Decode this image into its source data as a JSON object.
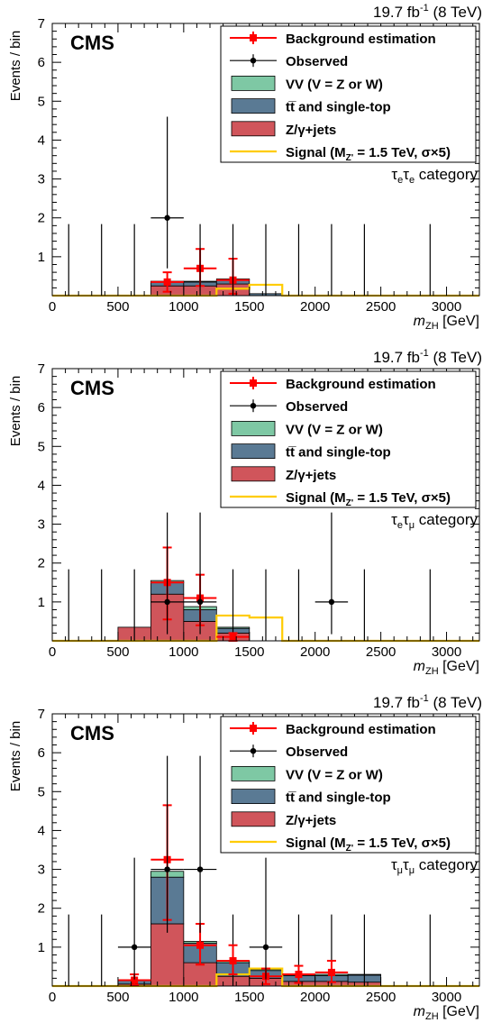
{
  "figure": {
    "lumi": "19.7 fb",
    "lumi_exp": "-1",
    "energy": "(8 TeV)",
    "cms_label": "CMS",
    "ylabel": "Events / bin",
    "xlabel_main": "m",
    "xlabel_sub": "ZH",
    "xlabel_unit": "[GeV]",
    "colors": {
      "vv": "#7ec8a4",
      "ttbar": "#5a7a94",
      "zjets": "#d0555b",
      "signal": "#ffcc00",
      "background_est": "#ff0000",
      "observed": "#000000"
    },
    "legend": [
      {
        "key": "bkg",
        "label": "Background estimation"
      },
      {
        "key": "obs",
        "label": "Observed"
      },
      {
        "key": "vv",
        "label": "VV (V = Z or W)"
      },
      {
        "key": "tt",
        "label": "tt̅ and single-top"
      },
      {
        "key": "zj",
        "label": "Z/γ+jets"
      },
      {
        "key": "sig",
        "label_prefix": "Signal (M",
        "label_sub": "Z'",
        "label_suffix": " = 1.5 TeV, σ×5)"
      }
    ]
  },
  "chart_data": [
    {
      "type": "bar",
      "category": {
        "t1": "τ",
        "s1": "e",
        "t2": "τ",
        "s2": "e",
        "word": " category"
      },
      "xlim": [
        0,
        3250
      ],
      "ylim": [
        0,
        7
      ],
      "xticks": [
        0,
        500,
        1000,
        1500,
        2000,
        2500,
        3000
      ],
      "yticks": [
        1,
        2,
        3,
        4,
        5,
        6,
        7
      ],
      "bins": [
        0,
        250,
        500,
        750,
        1000,
        1250,
        1500,
        1750,
        2000,
        2250,
        2500,
        3250
      ],
      "zjets": [
        0,
        0,
        0,
        0.25,
        0.25,
        0.3,
        0,
        0,
        0,
        0,
        0
      ],
      "ttbar": [
        0,
        0,
        0,
        0.1,
        0.1,
        0.1,
        0.05,
        0,
        0,
        0,
        0
      ],
      "vv": [
        0,
        0,
        0,
        0.02,
        0.02,
        0.03,
        0,
        0,
        0,
        0,
        0
      ],
      "signal": [
        0,
        0,
        0,
        0,
        0,
        0.18,
        0.28,
        0,
        0,
        0,
        0
      ],
      "background_estimation": [
        {
          "x": 875,
          "xerr": 125,
          "y": 0.35,
          "yerr_lo": 0.25,
          "yerr_hi": 0.25
        },
        {
          "x": 1125,
          "xerr": 125,
          "y": 0.7,
          "yerr_lo": 0.45,
          "yerr_hi": 0.5
        },
        {
          "x": 1375,
          "xerr": 125,
          "y": 0.4,
          "yerr_lo": 0.35,
          "yerr_hi": 0.55
        }
      ],
      "observed": [
        {
          "x": 875,
          "xerr": 125,
          "y": 2,
          "yerr_lo": 1.3,
          "yerr_hi": 2.6
        },
        {
          "x": 1125,
          "xerr": 125,
          "y": 0,
          "yerr_lo": 0,
          "yerr_hi": 1.84
        },
        {
          "x": 1375,
          "xerr": 125,
          "y": 0,
          "yerr_lo": 0,
          "yerr_hi": 1.84
        }
      ],
      "empty_bins_upper_error": [
        {
          "x": 125,
          "y": 1.84
        },
        {
          "x": 375,
          "y": 1.84
        },
        {
          "x": 625,
          "y": 1.84
        },
        {
          "x": 1625,
          "y": 1.84
        },
        {
          "x": 1875,
          "y": 1.84
        },
        {
          "x": 2125,
          "y": 1.84
        },
        {
          "x": 2375,
          "y": 1.84
        },
        {
          "x": 2875,
          "y": 1.84
        }
      ]
    },
    {
      "type": "bar",
      "category": {
        "t1": "τ",
        "s1": "e",
        "t2": "τ",
        "s2": "μ",
        "word": " category"
      },
      "xlim": [
        0,
        3250
      ],
      "ylim": [
        0,
        7
      ],
      "xticks": [
        0,
        500,
        1000,
        1500,
        2000,
        2500,
        3000
      ],
      "yticks": [
        1,
        2,
        3,
        4,
        5,
        6,
        7
      ],
      "bins": [
        0,
        250,
        500,
        750,
        1000,
        1250,
        1500,
        1750,
        2000,
        2250,
        2500,
        3250
      ],
      "zjets": [
        0,
        0,
        0.35,
        1.2,
        0.5,
        0.2,
        0,
        0,
        0,
        0,
        0
      ],
      "ttbar": [
        0,
        0,
        0,
        0.3,
        0.3,
        0.12,
        0,
        0,
        0,
        0,
        0
      ],
      "vv": [
        0,
        0,
        0,
        0.05,
        0.08,
        0.03,
        0,
        0,
        0,
        0,
        0
      ],
      "signal": [
        0,
        0,
        0,
        0,
        0,
        0.65,
        0.6,
        0,
        0,
        0,
        0
      ],
      "background_estimation": [
        {
          "x": 875,
          "xerr": 125,
          "y": 1.5,
          "yerr_lo": 0.95,
          "yerr_hi": 0.9
        },
        {
          "x": 1125,
          "xerr": 125,
          "y": 1.1,
          "yerr_lo": 0.7,
          "yerr_hi": 0.6
        },
        {
          "x": 1375,
          "xerr": 125,
          "y": 0.1,
          "yerr_lo": 0.1,
          "yerr_hi": 0.1
        }
      ],
      "observed": [
        {
          "x": 875,
          "xerr": 125,
          "y": 1,
          "yerr_lo": 0.83,
          "yerr_hi": 2.3
        },
        {
          "x": 1125,
          "xerr": 125,
          "y": 1,
          "yerr_lo": 0.83,
          "yerr_hi": 2.3
        },
        {
          "x": 2125,
          "xerr": 125,
          "y": 1,
          "yerr_lo": 0.83,
          "yerr_hi": 2.3
        }
      ],
      "empty_bins_upper_error": [
        {
          "x": 125,
          "y": 1.84
        },
        {
          "x": 375,
          "y": 1.84
        },
        {
          "x": 625,
          "y": 1.84
        },
        {
          "x": 1375,
          "y": 1.84
        },
        {
          "x": 1625,
          "y": 1.84
        },
        {
          "x": 1875,
          "y": 1.84
        },
        {
          "x": 2375,
          "y": 1.84
        },
        {
          "x": 2875,
          "y": 1.84
        }
      ]
    },
    {
      "type": "bar",
      "category": {
        "t1": "τ",
        "s1": "μ",
        "t2": "τ",
        "s2": "μ",
        "word": " category"
      },
      "xlim": [
        0,
        3250
      ],
      "ylim": [
        0,
        7
      ],
      "xticks": [
        0,
        500,
        1000,
        1500,
        2000,
        2500,
        3000
      ],
      "yticks": [
        1,
        2,
        3,
        4,
        5,
        6,
        7
      ],
      "bins": [
        0,
        250,
        500,
        750,
        1000,
        1250,
        1500,
        1750,
        2000,
        2250,
        2500,
        3250
      ],
      "zjets": [
        0,
        0,
        0.05,
        1.6,
        0.6,
        0.25,
        0.2,
        0.12,
        0.12,
        0.1,
        0
      ],
      "ttbar": [
        0,
        0,
        0.1,
        1.2,
        0.5,
        0.35,
        0.2,
        0.15,
        0.15,
        0.18,
        0
      ],
      "vv": [
        0,
        0,
        0,
        0.15,
        0.05,
        0.05,
        0.03,
        0.03,
        0.03,
        0.02,
        0
      ],
      "signal": [
        0,
        0,
        0,
        0,
        0,
        0.3,
        0.45,
        0,
        0,
        0,
        0
      ],
      "background_estimation": [
        {
          "x": 625,
          "xerr": 125,
          "y": 0.15,
          "yerr_lo": 0.12,
          "yerr_hi": 0.15
        },
        {
          "x": 875,
          "xerr": 125,
          "y": 3.25,
          "yerr_lo": 1.55,
          "yerr_hi": 1.4
        },
        {
          "x": 1125,
          "xerr": 125,
          "y": 1.05,
          "yerr_lo": 0.5,
          "yerr_hi": 0.55
        },
        {
          "x": 1375,
          "xerr": 125,
          "y": 0.65,
          "yerr_lo": 0.35,
          "yerr_hi": 0.4
        },
        {
          "x": 1625,
          "xerr": 125,
          "y": 0.25,
          "yerr_lo": 0.2,
          "yerr_hi": 0.2
        },
        {
          "x": 1875,
          "xerr": 125,
          "y": 0.3,
          "yerr_lo": 0.22,
          "yerr_hi": 0.22
        },
        {
          "x": 2125,
          "xerr": 125,
          "y": 0.35,
          "yerr_lo": 0.25,
          "yerr_hi": 0.3
        }
      ],
      "observed": [
        {
          "x": 625,
          "xerr": 125,
          "y": 1,
          "yerr_lo": 0.83,
          "yerr_hi": 2.3
        },
        {
          "x": 875,
          "xerr": 125,
          "y": 3,
          "yerr_lo": 1.63,
          "yerr_hi": 2.92
        },
        {
          "x": 1125,
          "xerr": 125,
          "y": 3,
          "yerr_lo": 1.63,
          "yerr_hi": 2.92
        },
        {
          "x": 1625,
          "xerr": 125,
          "y": 1,
          "yerr_lo": 0.83,
          "yerr_hi": 2.3
        }
      ],
      "empty_bins_upper_error": [
        {
          "x": 125,
          "y": 1.84
        },
        {
          "x": 375,
          "y": 1.84
        },
        {
          "x": 1375,
          "y": 1.84
        },
        {
          "x": 1875,
          "y": 1.84
        },
        {
          "x": 2125,
          "y": 1.84
        },
        {
          "x": 2375,
          "y": 1.84
        },
        {
          "x": 2875,
          "y": 1.84
        }
      ]
    }
  ]
}
